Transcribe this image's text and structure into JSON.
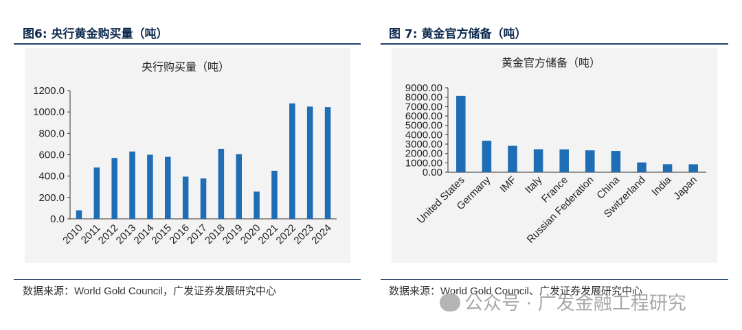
{
  "left": {
    "figure_title": "图6:  央行黄金购买量（吨）",
    "source_zh": "数据来源：",
    "source_en": "World Gold Council",
    "source_tail": "，广发证券发展研究中心"
  },
  "right": {
    "figure_title": "图 7:  黄金官方储备（吨）",
    "source_zh": "数据来源：",
    "source_en": "World Gold Council",
    "source_tail": "、广发证券发展研究中心"
  },
  "watermark": "公众号 · 广发金融工程研究",
  "colors": {
    "bar": "#1f6eb5",
    "axis": "#333333",
    "plot_bg": "#f3f3f3",
    "title": "#0d2a4e"
  },
  "chart_data": [
    {
      "type": "bar",
      "title": "央行购买量（吨）",
      "categories": [
        "2010",
        "2011",
        "2012",
        "2013",
        "2014",
        "2015",
        "2016",
        "2017",
        "2018",
        "2019",
        "2020",
        "2021",
        "2022",
        "2023",
        "2024"
      ],
      "values": [
        80,
        480,
        570,
        630,
        600,
        580,
        395,
        378,
        655,
        605,
        255,
        450,
        1080,
        1050,
        1045
      ],
      "y_tick_labels": [
        "0.0",
        "200.0",
        "400.0",
        "600.0",
        "800.0",
        "1000.0",
        "1200.0"
      ],
      "ylim": [
        0,
        1200
      ],
      "xlabel": "",
      "ylabel": "",
      "grid": false
    },
    {
      "type": "bar",
      "title": "黄金官方储备（吨）",
      "categories": [
        "United States",
        "Germany",
        "IMF",
        "Italy",
        "France",
        "Russian Federation",
        "China",
        "Switzerland",
        "India",
        "Japan"
      ],
      "values": [
        8133,
        3352,
        2814,
        2452,
        2437,
        2333,
        2264,
        1040,
        854,
        846
      ],
      "y_tick_labels": [
        "0.00",
        "1000.00",
        "2000.00",
        "3000.00",
        "4000.00",
        "5000.00",
        "6000.00",
        "7000.00",
        "8000.00",
        "9000.00"
      ],
      "ylim": [
        0,
        9000
      ],
      "xlabel": "",
      "ylabel": "",
      "grid": false
    }
  ]
}
